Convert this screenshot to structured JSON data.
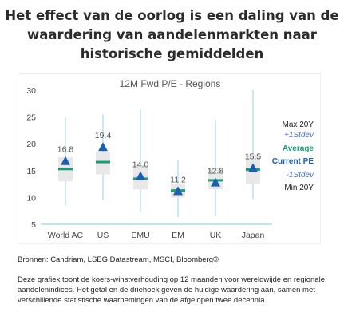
{
  "headline": "Het effect van de oorlog is een daling van de waardering van aandelenmarkten naar historische gemiddelden",
  "source": "Bronnen: Candriam, LSEG Datastream, MSCI, Bloomberg©",
  "description": "Deze grafiek toont de koers-winstverhouding op 12 maanden voor wereldwijde en regionale aandelenindices. Het getal en de driehoek geven de huidige waardering aan, samen met verschillende statistische waarnemingen van de afgelopen twee decennia.",
  "colors": {
    "whisker": "#a9d9e6",
    "band": "#e8e8e8",
    "average": "#1a9c78",
    "current": "#1b5fb3",
    "stdev_label": "#4a73c8",
    "axis": "#7fcbd6"
  },
  "chart_data": {
    "type": "box",
    "title": "12M Fwd P/E - Regions",
    "ylim": [
      5,
      30
    ],
    "yticks": [
      5,
      10,
      15,
      20,
      25,
      30
    ],
    "categories": [
      "World AC",
      "US",
      "EMU",
      "EM",
      "UK",
      "Japan"
    ],
    "max_20y": [
      25.0,
      25.5,
      26.5,
      17.0,
      24.5,
      30.0
    ],
    "plus_1std": [
      17.5,
      18.5,
      16.0,
      12.5,
      15.5,
      18.0
    ],
    "average": [
      15.3,
      16.6,
      13.5,
      11.3,
      13.2,
      15.2
    ],
    "minus_1std": [
      13.0,
      14.3,
      11.5,
      10.0,
      11.5,
      12.5
    ],
    "min_20y": [
      8.5,
      9.5,
      7.3,
      6.3,
      6.5,
      9.7
    ],
    "current_pe": [
      16.8,
      19.4,
      14.0,
      11.2,
      12.8,
      15.5
    ],
    "current_labels": [
      "16.8",
      "19.4",
      "14.0",
      "11.2",
      "12.8",
      "15.5"
    ],
    "legend": [
      "Max 20Y",
      "+1Stdev",
      "Average",
      "Current PE",
      "-1Stdev",
      "Min 20Y"
    ],
    "legend_position": "right",
    "grid": false
  }
}
